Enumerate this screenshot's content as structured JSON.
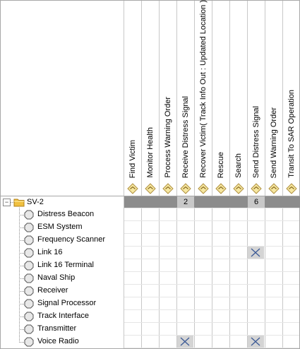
{
  "columns": [
    {
      "label": "Find Victim"
    },
    {
      "label": "Monitor Health"
    },
    {
      "label": "Process Warning Order"
    },
    {
      "label": "Receive Distress Signal"
    },
    {
      "label": "Recover Victim( Track Info Out : Updated Location )"
    },
    {
      "label": "Rescue"
    },
    {
      "label": "Search"
    },
    {
      "label": "Send Distress Signal"
    },
    {
      "label": "Send Warning Order"
    },
    {
      "label": "Transit To SAR Operation"
    }
  ],
  "root": {
    "label": "SV-2",
    "expander": "⊟",
    "counts": [
      "",
      "",
      "",
      "2",
      "",
      "",
      "",
      "6",
      "",
      ""
    ]
  },
  "rows": [
    {
      "label": "Distress Beacon",
      "marks": []
    },
    {
      "label": "ESM System",
      "marks": []
    },
    {
      "label": "Frequency Scanner",
      "marks": []
    },
    {
      "label": "Link 16",
      "marks": [
        7
      ]
    },
    {
      "label": "Link 16 Terminal",
      "marks": []
    },
    {
      "label": "Naval Ship",
      "marks": []
    },
    {
      "label": "Receiver",
      "marks": []
    },
    {
      "label": "Signal Processor",
      "marks": []
    },
    {
      "label": "Track Interface",
      "marks": []
    },
    {
      "label": "Transmitter",
      "marks": []
    },
    {
      "label": "Voice Radio",
      "marks": [
        3,
        7
      ]
    }
  ],
  "icons": {
    "column": "function-diamond-icon",
    "root": "folder-icon",
    "row": "octagon-system-icon",
    "mark": "x-mark-icon"
  },
  "colors": {
    "grid": "#c8c8c8",
    "dark_bar": "#8c8c8c",
    "mark_fill": "#d4d4d4",
    "mark_x": "#3c5a96",
    "folder": "#f0c040"
  }
}
